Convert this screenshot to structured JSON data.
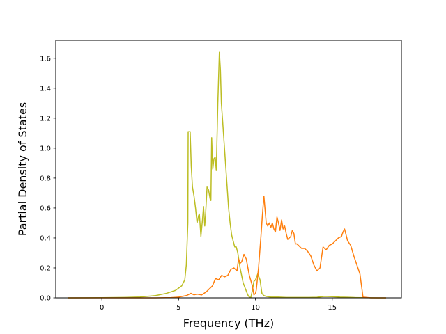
{
  "chart_data": {
    "type": "line",
    "title": "",
    "xlabel": "Frequency (THz)",
    "ylabel": "Partial Density of States",
    "xlim": [
      -3.0,
      19.5
    ],
    "ylim": [
      0.0,
      1.72
    ],
    "grid": false,
    "legend": "none",
    "xticks": [
      {
        "value": 0,
        "label": "0"
      },
      {
        "value": 5,
        "label": "5"
      },
      {
        "value": 10,
        "label": "10"
      },
      {
        "value": 15,
        "label": "15"
      }
    ],
    "yticks": [
      {
        "value": 0.0,
        "label": "0.0"
      },
      {
        "value": 0.2,
        "label": "0.2"
      },
      {
        "value": 0.4,
        "label": "0.4"
      },
      {
        "value": 0.6,
        "label": "0.6"
      },
      {
        "value": 0.8,
        "label": "0.8"
      },
      {
        "value": 1.0,
        "label": "1.0"
      },
      {
        "value": 1.2,
        "label": "1.2"
      },
      {
        "value": 1.4,
        "label": "1.4"
      },
      {
        "value": 1.6,
        "label": "1.6"
      }
    ],
    "series": [
      {
        "color": "#bcbd22",
        "x": [
          -2.2,
          0.0,
          1.5,
          2.5,
          3.5,
          4.2,
          4.8,
          5.2,
          5.4,
          5.5,
          5.6,
          5.62,
          5.75,
          5.82,
          5.9,
          6.0,
          6.1,
          6.2,
          6.3,
          6.35,
          6.45,
          6.55,
          6.62,
          6.7,
          6.75,
          6.85,
          6.95,
          7.05,
          7.1,
          7.15,
          7.22,
          7.3,
          7.38,
          7.45,
          7.55,
          7.65,
          7.72,
          7.78,
          7.85,
          7.95,
          8.05,
          8.15,
          8.25,
          8.35,
          8.45,
          8.55,
          8.65,
          8.75,
          8.85,
          9.0,
          9.1,
          9.2,
          9.35,
          9.5,
          9.6,
          9.7,
          9.8,
          9.9,
          10.0,
          10.15,
          10.3,
          10.42,
          10.5,
          10.55,
          10.7,
          11.0,
          11.5,
          12.0,
          12.5,
          13.5,
          14.0,
          14.5,
          15.0,
          15.5,
          16.0,
          16.5,
          17.0,
          18.0,
          18.5
        ],
        "y": [
          0.0,
          0.001,
          0.003,
          0.006,
          0.015,
          0.03,
          0.05,
          0.08,
          0.12,
          0.22,
          0.5,
          1.11,
          1.11,
          0.88,
          0.74,
          0.68,
          0.6,
          0.5,
          0.55,
          0.56,
          0.41,
          0.52,
          0.61,
          0.48,
          0.55,
          0.74,
          0.72,
          0.66,
          0.65,
          1.07,
          0.86,
          0.93,
          0.94,
          0.85,
          1.3,
          1.64,
          1.52,
          1.3,
          1.2,
          1.05,
          0.9,
          0.75,
          0.6,
          0.5,
          0.42,
          0.38,
          0.34,
          0.34,
          0.3,
          0.2,
          0.15,
          0.1,
          0.06,
          0.02,
          0.005,
          0.003,
          0.05,
          0.11,
          0.12,
          0.16,
          0.12,
          0.03,
          0.02,
          0.015,
          0.01,
          0.005,
          0.005,
          0.003,
          0.003,
          0.003,
          0.004,
          0.01,
          0.008,
          0.005,
          0.004,
          0.002,
          0.001,
          0.0,
          0.0
        ]
      },
      {
        "color": "#ff7f0e",
        "x": [
          -2.2,
          0.0,
          2.0,
          3.5,
          4.5,
          5.0,
          5.5,
          5.8,
          6.0,
          6.2,
          6.5,
          6.8,
          7.0,
          7.2,
          7.4,
          7.6,
          7.8,
          8.0,
          8.2,
          8.4,
          8.6,
          8.8,
          8.9,
          9.0,
          9.1,
          9.25,
          9.4,
          9.6,
          9.8,
          9.9,
          10.0,
          10.05,
          10.2,
          10.35,
          10.45,
          10.55,
          10.6,
          10.7,
          10.8,
          10.9,
          11.0,
          11.1,
          11.2,
          11.3,
          11.4,
          11.5,
          11.6,
          11.7,
          11.8,
          11.9,
          12.0,
          12.1,
          12.2,
          12.3,
          12.4,
          12.5,
          12.6,
          12.7,
          12.8,
          13.0,
          13.2,
          13.4,
          13.6,
          13.8,
          14.0,
          14.2,
          14.4,
          14.6,
          14.8,
          15.0,
          15.2,
          15.4,
          15.6,
          15.7,
          15.8,
          16.0,
          16.2,
          16.4,
          16.6,
          16.8,
          17.0,
          17.5,
          18.5
        ],
        "y": [
          0.0,
          0.0,
          0.0,
          0.0,
          0.002,
          0.005,
          0.015,
          0.03,
          0.02,
          0.025,
          0.02,
          0.04,
          0.06,
          0.08,
          0.13,
          0.12,
          0.15,
          0.14,
          0.15,
          0.19,
          0.2,
          0.18,
          0.26,
          0.23,
          0.24,
          0.29,
          0.26,
          0.15,
          0.08,
          0.02,
          0.03,
          0.05,
          0.2,
          0.4,
          0.55,
          0.68,
          0.62,
          0.5,
          0.48,
          0.5,
          0.47,
          0.5,
          0.46,
          0.44,
          0.54,
          0.5,
          0.45,
          0.52,
          0.46,
          0.48,
          0.43,
          0.39,
          0.4,
          0.41,
          0.45,
          0.43,
          0.36,
          0.36,
          0.35,
          0.33,
          0.33,
          0.31,
          0.28,
          0.22,
          0.18,
          0.2,
          0.34,
          0.32,
          0.35,
          0.36,
          0.38,
          0.4,
          0.41,
          0.44,
          0.46,
          0.38,
          0.35,
          0.28,
          0.22,
          0.16,
          0.005,
          0.0,
          0.0
        ]
      }
    ]
  }
}
